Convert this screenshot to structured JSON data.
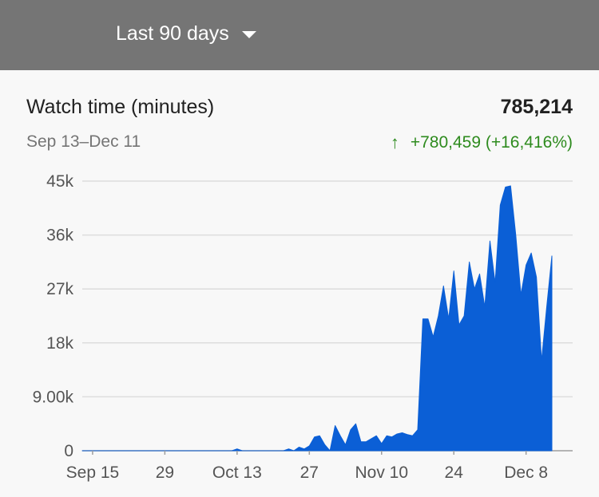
{
  "header": {
    "range_label": "Last 90 days"
  },
  "metric": {
    "title": "Watch time (minutes)",
    "value": "785,214",
    "date_range": "Sep 13–Dec 11",
    "change": "+780,459 (+16,416%)"
  },
  "colors": {
    "topbar": "#757575",
    "area": "#0b5fd6",
    "positive": "#2e8b1e",
    "grid": "#dddddd"
  },
  "chart_data": {
    "type": "area",
    "title": "Watch time (minutes)",
    "xlabel": "",
    "ylabel": "",
    "ylim": [
      0,
      45000
    ],
    "grid": true,
    "y_ticks": [
      {
        "value": 0,
        "label": "0"
      },
      {
        "value": 9000,
        "label": "9.00k"
      },
      {
        "value": 18000,
        "label": "18k"
      },
      {
        "value": 27000,
        "label": "27k"
      },
      {
        "value": 36000,
        "label": "36k"
      },
      {
        "value": 45000,
        "label": "45k"
      }
    ],
    "x_ticks": [
      {
        "value": 2,
        "label": "Sep 15"
      },
      {
        "value": 16,
        "label": "29"
      },
      {
        "value": 30,
        "label": "Oct 13"
      },
      {
        "value": 44,
        "label": "27"
      },
      {
        "value": 58,
        "label": "Nov 10"
      },
      {
        "value": 72,
        "label": "24"
      },
      {
        "value": 86,
        "label": "Dec 8"
      }
    ],
    "series": [
      {
        "values": [
          0,
          0,
          0,
          0,
          0,
          0,
          0,
          0,
          0,
          0,
          0,
          0,
          0,
          0,
          0,
          0,
          0,
          0,
          0,
          0,
          0,
          0,
          0,
          0,
          0,
          0,
          0,
          0,
          0,
          0,
          300,
          0,
          0,
          0,
          0,
          0,
          0,
          0,
          0,
          0,
          300,
          0,
          600,
          300,
          800,
          2300,
          2500,
          1000,
          0,
          4200,
          2500,
          1000,
          3500,
          4500,
          1500,
          1500,
          2000,
          2500,
          1200,
          2500,
          2300,
          2800,
          3000,
          2700,
          2500,
          3500,
          22000,
          22000,
          19000,
          22500,
          27500,
          22000,
          30000,
          21000,
          22500,
          31500,
          27000,
          29500,
          24000,
          35000,
          28000,
          41000,
          44000,
          44200,
          36000,
          26000,
          31000,
          33000,
          29000,
          15000,
          24000,
          32500
        ]
      }
    ]
  }
}
